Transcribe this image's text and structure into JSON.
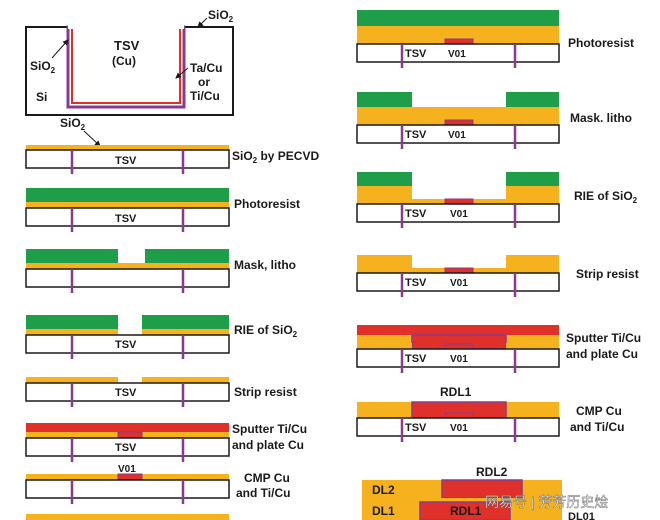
{
  "colors": {
    "oxide": "#F5B21E",
    "resist": "#1E9E48",
    "copper": "#E0302A",
    "barrier": "#8A3A8E",
    "outline": "#1a1a1a",
    "watermark": "#ffffff"
  },
  "labels": {
    "sio2_top": "SiO",
    "sio2_sub": "2",
    "tsv_main": "TSV",
    "tsv_cu": "(Cu)",
    "sio2_left": "SiO",
    "sio2_left_sub": "2",
    "si": "Si",
    "barrier_1": "Ta/Cu",
    "barrier_2": "or",
    "barrier_3": "Ti/Cu",
    "sio2_arrow": "SiO",
    "sio2_arrow_sub": "2",
    "tsv": "TSV",
    "v01": "V01",
    "rdl1": "RDL1",
    "rdl2": "RDL2",
    "dl1": "DL1",
    "dl2": "DL2",
    "dl01": "DL01"
  },
  "steps": {
    "l1a": "SiO",
    "l1b": "2",
    "l1c": " by PECVD",
    "l2": "Photoresist",
    "l3": "Mask, litho",
    "l4a": "RIE of SiO",
    "l4b": "2",
    "l5": "Strip resist",
    "l6a": "Sputter Ti/Cu",
    "l6b": "and plate Cu",
    "l7a": "CMP Cu",
    "l7b": "and Ti/Cu",
    "r1": "Photoresist",
    "r2": "Mask. litho",
    "r3a": "RIE of SiO",
    "r3b": "2",
    "r4": "Strip resist",
    "r5a": "Sputter Ti/Cu",
    "r5b": "and plate Cu",
    "r6a": "CMP Cu",
    "r6b": "and Ti/Cu"
  },
  "watermark": "网易号 | 芳芳历史烩"
}
